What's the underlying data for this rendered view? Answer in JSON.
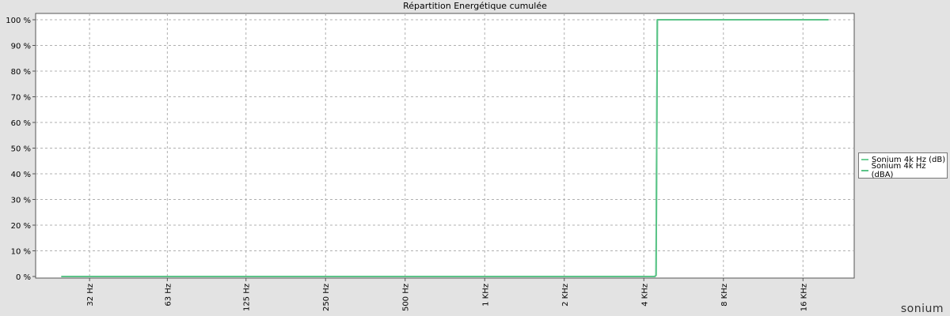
{
  "brand": "sonium",
  "chart_data": {
    "type": "line",
    "title": "Répartition Energétique cumulée",
    "xlabel": "",
    "ylabel": "",
    "x_scale": "log2",
    "x_ticks": [
      {
        "value": 32,
        "label": "32 Hz"
      },
      {
        "value": 63,
        "label": "63 Hz"
      },
      {
        "value": 125,
        "label": "125 Hz"
      },
      {
        "value": 250,
        "label": "250 Hz"
      },
      {
        "value": 500,
        "label": "500 Hz"
      },
      {
        "value": 1000,
        "label": "1 KHz"
      },
      {
        "value": 2000,
        "label": "2 KHz"
      },
      {
        "value": 4000,
        "label": "4 KHz"
      },
      {
        "value": 8000,
        "label": "8 KHz"
      },
      {
        "value": 16000,
        "label": "16 KHz"
      }
    ],
    "y_ticks": [
      {
        "value": 0,
        "label": "0 %"
      },
      {
        "value": 10,
        "label": "10 %"
      },
      {
        "value": 20,
        "label": "20 %"
      },
      {
        "value": 30,
        "label": "30 %"
      },
      {
        "value": 40,
        "label": "40 %"
      },
      {
        "value": 50,
        "label": "50 %"
      },
      {
        "value": 60,
        "label": "60 %"
      },
      {
        "value": 70,
        "label": "70 %"
      },
      {
        "value": 80,
        "label": "80 %"
      },
      {
        "value": 90,
        "label": "90 %"
      },
      {
        "value": 100,
        "label": "100 %"
      }
    ],
    "xlim": [
      20,
      25000
    ],
    "ylim": [
      0,
      100
    ],
    "grid": true,
    "legend_position": "right",
    "series": [
      {
        "name": "Sonium 4k Hz (dB)",
        "color": "#6fcf97",
        "x": [
          25,
          4400,
          4450,
          4500,
          20000
        ],
        "y": [
          0,
          0,
          0.5,
          100,
          100
        ]
      },
      {
        "name": "Sonium 4k Hz (dBA)",
        "color": "#5cc488",
        "x": [
          25,
          4400,
          4450,
          4500,
          20000
        ],
        "y": [
          0,
          0,
          0.5,
          100,
          100
        ]
      }
    ]
  }
}
